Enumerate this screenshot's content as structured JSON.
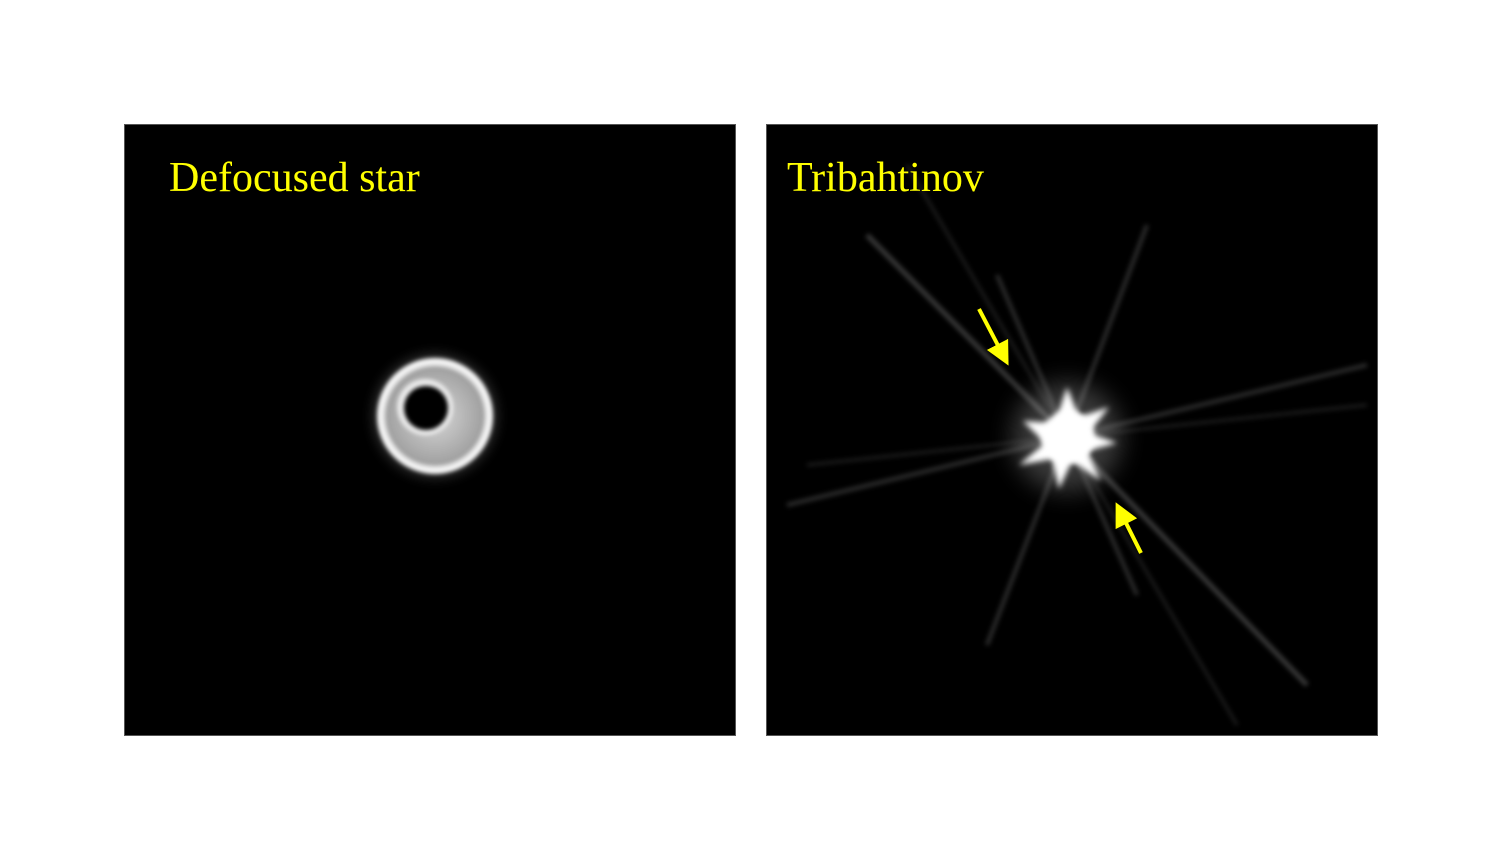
{
  "panels": [
    {
      "label": "Defocused star"
    },
    {
      "label": "Tribahtinov"
    }
  ],
  "colors": {
    "background": "#ffffff",
    "panel_background": "#000000",
    "label": "#ffff00",
    "arrow": "#ffff00"
  }
}
